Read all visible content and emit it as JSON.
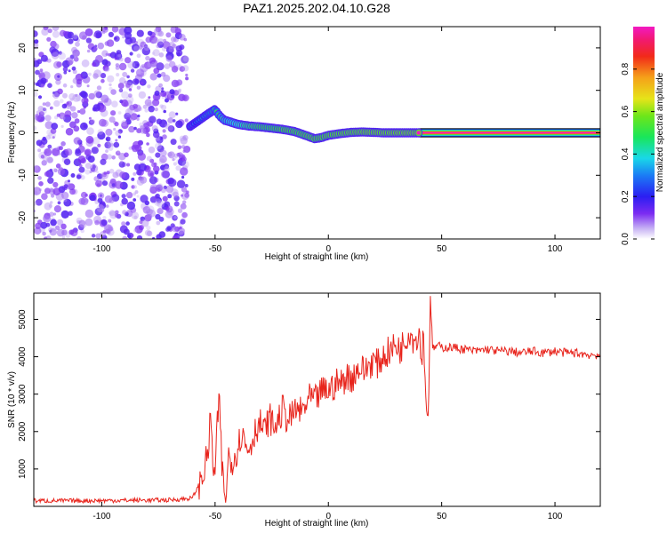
{
  "title": "PAZ1.2025.202.04.10.G28",
  "colors": {
    "snr_line": "#e8241c",
    "axis": "#000000"
  },
  "chart_data": [
    {
      "type": "heatmap",
      "xlabel": "Height of straight line (km)",
      "ylabel": "Frequency (Hz)",
      "xlim": [
        -130,
        120
      ],
      "ylim": [
        -25,
        25
      ],
      "xticks": [
        -100,
        -50,
        0,
        50,
        100
      ],
      "yticks": [
        -20,
        -10,
        0,
        10,
        20
      ],
      "xtick_labels": [
        "-100",
        "-50",
        "0",
        "50",
        "100"
      ],
      "ytick_labels": [
        "-20",
        "-10",
        "0",
        "10",
        "20"
      ],
      "colorbar": {
        "label": "Normalized spectral amplitude",
        "range": [
          0,
          1
        ],
        "ticks": [
          "0.0",
          "0.2",
          "0.4",
          "0.6",
          "0.8"
        ]
      },
      "noise_region": {
        "x": [
          -130,
          -62
        ],
        "y": [
          -25,
          25
        ],
        "amplitude": 0.15
      },
      "ridge": {
        "x": [
          -61,
          -57,
          -53,
          -50,
          -48,
          -46,
          -43,
          -40,
          -35,
          -30,
          -25,
          -20,
          -15,
          -10,
          -6,
          -3,
          0,
          5,
          10,
          15,
          20,
          25,
          30,
          35,
          40,
          120
        ],
        "y": [
          1.5,
          3,
          4.5,
          5.5,
          4,
          3,
          2.5,
          2,
          1.6,
          1.4,
          1.1,
          0.8,
          0.3,
          -0.6,
          -1.4,
          -1.1,
          -0.6,
          -0.2,
          0.1,
          0.2,
          0.1,
          0.0,
          0.0,
          0.0,
          0.0,
          0.0
        ],
        "amplitude": [
          0.3,
          0.4,
          0.45,
          0.5,
          0.55,
          0.6,
          0.65,
          0.7,
          0.8,
          0.85,
          0.85,
          0.9,
          0.9,
          0.9,
          0.92,
          0.92,
          0.94,
          0.95,
          0.95,
          0.97,
          0.98,
          0.98,
          0.99,
          0.99,
          1.0,
          1.0
        ]
      }
    },
    {
      "type": "line",
      "xlabel": "Height of straight line (km)",
      "ylabel": "SNR (10 * v/v)",
      "xlim": [
        -130,
        120
      ],
      "ylim": [
        0,
        5700
      ],
      "xticks": [
        -100,
        -50,
        0,
        50,
        100
      ],
      "yticks": [
        1000,
        2000,
        3000,
        4000,
        5000
      ],
      "xtick_labels": [
        "-100",
        "-50",
        "0",
        "50",
        "100"
      ],
      "ytick_labels": [
        "1000",
        "2000",
        "3000",
        "4000",
        "5000"
      ],
      "series": [
        {
          "x": [
            -130,
            -110,
            -90,
            -70,
            -60,
            -57,
            -55,
            -53,
            -52,
            -51,
            -50,
            -49,
            -48,
            -47,
            -46,
            -45,
            -44,
            -42,
            -40,
            -38,
            -36,
            -34,
            -32,
            -30,
            -28,
            -26,
            -24,
            -22,
            -20,
            -18,
            -16,
            -14,
            -12,
            -10,
            -8,
            -6,
            -4,
            -2,
            0,
            2,
            4,
            6,
            8,
            10,
            12,
            14,
            16,
            18,
            20,
            22,
            24,
            26,
            28,
            30,
            32,
            34,
            36,
            38,
            40,
            41,
            42,
            43,
            44,
            45,
            46,
            48,
            50,
            55,
            60,
            65,
            70,
            75,
            80,
            85,
            90,
            95,
            100,
            105,
            110,
            115,
            120
          ],
          "y": [
            150,
            150,
            160,
            170,
            220,
            600,
            900,
            1500,
            2400,
            1200,
            800,
            2200,
            2800,
            1100,
            400,
            300,
            1400,
            1200,
            1600,
            2000,
            1500,
            1700,
            2100,
            2200,
            2000,
            2400,
            2100,
            2300,
            2600,
            2300,
            2400,
            2600,
            2500,
            2700,
            2900,
            2800,
            3000,
            3100,
            3100,
            3200,
            3300,
            3300,
            3500,
            3400,
            3600,
            3700,
            3600,
            3800,
            3900,
            3800,
            4000,
            4100,
            4200,
            4300,
            4200,
            4500,
            4700,
            4400,
            4700,
            4000,
            4600,
            3000,
            2200,
            5700,
            4200,
            4300,
            4250,
            4250,
            4200,
            4150,
            4200,
            4150,
            4150,
            4100,
            4150,
            4100,
            4150,
            4100,
            4100,
            4050,
            4050
          ]
        }
      ]
    }
  ]
}
